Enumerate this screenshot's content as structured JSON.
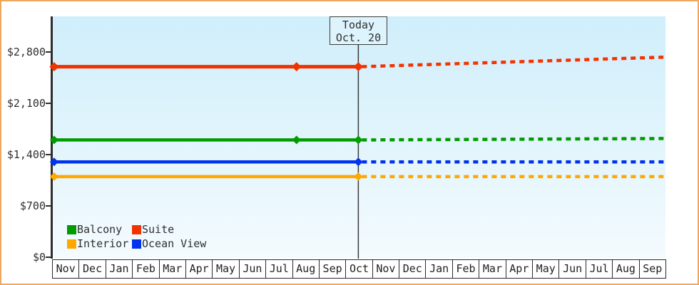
{
  "chart_data": {
    "type": "line",
    "title": "",
    "currency": "$",
    "x_axis": {
      "months": [
        "Nov",
        "Dec",
        "Jan",
        "Feb",
        "Mar",
        "Apr",
        "May",
        "Jun",
        "Jul",
        "Aug",
        "Sep",
        "Oct",
        "Nov",
        "Dec",
        "Jan",
        "Feb",
        "Mar",
        "Apr",
        "May",
        "Jun",
        "Jul",
        "Aug",
        "Sep"
      ]
    },
    "y_axis": {
      "ticks": [
        {
          "label": "$0",
          "value": 0
        },
        {
          "label": "$700",
          "value": 700
        },
        {
          "label": "$1,400",
          "value": 1400
        },
        {
          "label": "$2,100",
          "value": 2100
        },
        {
          "label": "$2,800",
          "value": 2800
        }
      ],
      "ylim": [
        0,
        3290
      ],
      "grid": false
    },
    "today": {
      "box_line1": "Today",
      "box_line2": "Oct. 20",
      "month_index": 11.47
    },
    "series": [
      {
        "name": "Suite",
        "color": "#f23300",
        "history_price": 2600,
        "forecast_end_price": 2730,
        "history_style": "solid",
        "forecast_style": "dotted",
        "marker_month_indices": [
          0.05,
          9.15,
          11.47
        ]
      },
      {
        "name": "Balcony",
        "color": "#009b00",
        "history_price": 1600,
        "forecast_end_price": 1620,
        "history_style": "solid",
        "forecast_style": "dotted",
        "marker_month_indices": [
          0.05,
          9.15,
          11.47
        ]
      },
      {
        "name": "Ocean View",
        "color": "#0033ee",
        "history_price": 1300,
        "forecast_end_price": 1300,
        "history_style": "solid",
        "forecast_style": "dotted",
        "marker_month_indices": [
          0.05,
          11.47
        ]
      },
      {
        "name": "Interior",
        "color": "#ffa800",
        "history_price": 1100,
        "forecast_end_price": 1100,
        "history_style": "solid",
        "forecast_style": "dotted",
        "marker_month_indices": [
          0.05,
          11.47
        ]
      }
    ],
    "legend": {
      "position": "bottom-left",
      "items": [
        {
          "label": "Balcony",
          "color": "#009b00"
        },
        {
          "label": "Suite",
          "color": "#f23300"
        },
        {
          "label": "Interior",
          "color": "#ffa800"
        },
        {
          "label": "Ocean View",
          "color": "#0033ee"
        }
      ]
    },
    "frame_color": "#efa95f",
    "axis_color": "#2e2e2e"
  }
}
